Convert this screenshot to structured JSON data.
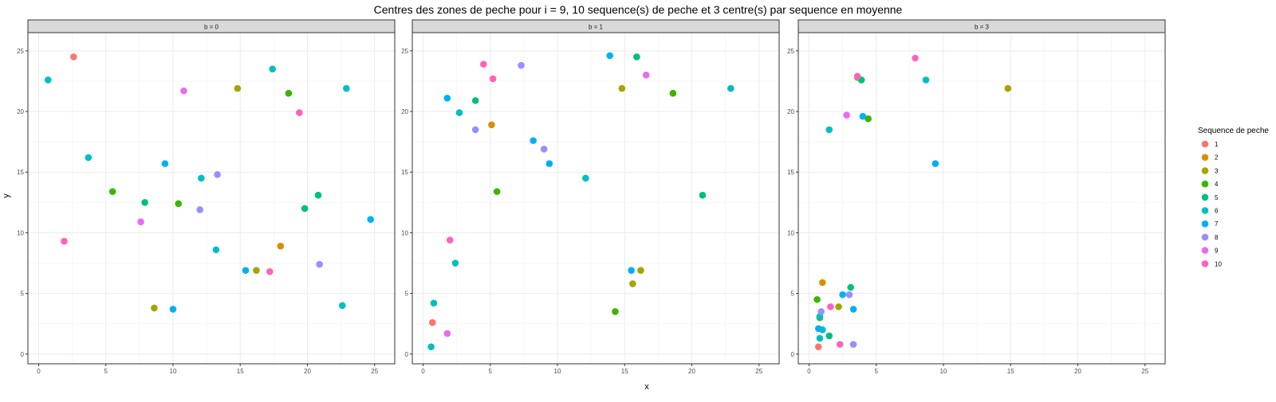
{
  "chart_data": {
    "type": "scatter",
    "title": "Centres des zones de peche pour i = 9, 10 sequence(s) de peche et 3 centre(s) par sequence en moyenne",
    "xlabel": "x",
    "ylabel": "y",
    "xlim": [
      -0.8,
      26.5
    ],
    "ylim": [
      -0.8,
      26.5
    ],
    "x_ticks": [
      0,
      5,
      10,
      15,
      20,
      25
    ],
    "y_ticks": [
      0,
      5,
      10,
      15,
      20,
      25
    ],
    "grid": true,
    "legend": {
      "title": "Sequence de peche",
      "position": "right",
      "labels": [
        "1",
        "2",
        "3",
        "4",
        "5",
        "6",
        "7",
        "8",
        "9",
        "10"
      ],
      "colors": [
        "#F8766D",
        "#D89000",
        "#A3A500",
        "#39B600",
        "#00BF7D",
        "#00BFC4",
        "#00B0F6",
        "#9590FF",
        "#E76BF3",
        "#FF62BC"
      ]
    },
    "panels": [
      {
        "label": "b = 0",
        "points": [
          {
            "x": 2.6,
            "y": 24.5,
            "seq": 1
          },
          {
            "x": 18.0,
            "y": 8.9,
            "seq": 2
          },
          {
            "x": 14.8,
            "y": 21.9,
            "seq": 3
          },
          {
            "x": 16.2,
            "y": 6.9,
            "seq": 3
          },
          {
            "x": 8.6,
            "y": 3.8,
            "seq": 3
          },
          {
            "x": 18.6,
            "y": 21.5,
            "seq": 4
          },
          {
            "x": 5.5,
            "y": 13.4,
            "seq": 4
          },
          {
            "x": 10.4,
            "y": 12.4,
            "seq": 4
          },
          {
            "x": 7.9,
            "y": 12.5,
            "seq": 5
          },
          {
            "x": 20.8,
            "y": 13.1,
            "seq": 5
          },
          {
            "x": 19.8,
            "y": 12.0,
            "seq": 5
          },
          {
            "x": 0.7,
            "y": 22.6,
            "seq": 6
          },
          {
            "x": 17.4,
            "y": 23.5,
            "seq": 6
          },
          {
            "x": 22.9,
            "y": 21.9,
            "seq": 6
          },
          {
            "x": 3.7,
            "y": 16.2,
            "seq": 6
          },
          {
            "x": 12.1,
            "y": 14.5,
            "seq": 6
          },
          {
            "x": 13.2,
            "y": 8.6,
            "seq": 6
          },
          {
            "x": 22.6,
            "y": 4.0,
            "seq": 6
          },
          {
            "x": 9.4,
            "y": 15.7,
            "seq": 7
          },
          {
            "x": 24.7,
            "y": 11.1,
            "seq": 7
          },
          {
            "x": 15.4,
            "y": 6.9,
            "seq": 7
          },
          {
            "x": 10.0,
            "y": 3.7,
            "seq": 7
          },
          {
            "x": 13.3,
            "y": 14.8,
            "seq": 8
          },
          {
            "x": 12.0,
            "y": 11.9,
            "seq": 8
          },
          {
            "x": 20.9,
            "y": 7.4,
            "seq": 8
          },
          {
            "x": 10.8,
            "y": 21.7,
            "seq": 9
          },
          {
            "x": 7.6,
            "y": 10.9,
            "seq": 9
          },
          {
            "x": 19.4,
            "y": 19.9,
            "seq": 10
          },
          {
            "x": 1.9,
            "y": 9.3,
            "seq": 10
          },
          {
            "x": 17.2,
            "y": 6.8,
            "seq": 10
          }
        ]
      },
      {
        "label": "b = 1",
        "points": [
          {
            "x": 0.7,
            "y": 2.6,
            "seq": 1
          },
          {
            "x": 5.1,
            "y": 18.9,
            "seq": 2
          },
          {
            "x": 14.8,
            "y": 21.9,
            "seq": 3
          },
          {
            "x": 16.2,
            "y": 6.9,
            "seq": 3
          },
          {
            "x": 15.6,
            "y": 5.8,
            "seq": 3
          },
          {
            "x": 18.6,
            "y": 21.5,
            "seq": 4
          },
          {
            "x": 5.5,
            "y": 13.4,
            "seq": 4
          },
          {
            "x": 14.3,
            "y": 3.5,
            "seq": 4
          },
          {
            "x": 15.9,
            "y": 24.5,
            "seq": 5
          },
          {
            "x": 3.9,
            "y": 20.9,
            "seq": 5
          },
          {
            "x": 20.8,
            "y": 13.1,
            "seq": 5
          },
          {
            "x": 2.7,
            "y": 19.9,
            "seq": 6
          },
          {
            "x": 22.9,
            "y": 21.9,
            "seq": 6
          },
          {
            "x": 12.1,
            "y": 14.5,
            "seq": 6
          },
          {
            "x": 2.4,
            "y": 7.5,
            "seq": 6
          },
          {
            "x": 0.8,
            "y": 4.2,
            "seq": 6
          },
          {
            "x": 0.6,
            "y": 0.6,
            "seq": 6
          },
          {
            "x": 13.9,
            "y": 24.6,
            "seq": 7
          },
          {
            "x": 1.8,
            "y": 21.1,
            "seq": 7
          },
          {
            "x": 8.2,
            "y": 17.6,
            "seq": 7
          },
          {
            "x": 9.4,
            "y": 15.7,
            "seq": 7
          },
          {
            "x": 15.5,
            "y": 6.9,
            "seq": 7
          },
          {
            "x": 7.3,
            "y": 23.8,
            "seq": 8
          },
          {
            "x": 3.9,
            "y": 18.5,
            "seq": 8
          },
          {
            "x": 9.0,
            "y": 16.9,
            "seq": 8
          },
          {
            "x": 16.6,
            "y": 23.0,
            "seq": 9
          },
          {
            "x": 1.8,
            "y": 1.7,
            "seq": 9
          },
          {
            "x": 4.5,
            "y": 23.9,
            "seq": 10
          },
          {
            "x": 5.2,
            "y": 22.7,
            "seq": 10
          },
          {
            "x": 2.0,
            "y": 9.4,
            "seq": 10
          }
        ]
      },
      {
        "label": "b = 3",
        "points": [
          {
            "x": 0.7,
            "y": 0.6,
            "seq": 1
          },
          {
            "x": 1.0,
            "y": 5.9,
            "seq": 2
          },
          {
            "x": 3.6,
            "y": 22.8,
            "seq": 3
          },
          {
            "x": 14.8,
            "y": 21.9,
            "seq": 3
          },
          {
            "x": 2.2,
            "y": 3.9,
            "seq": 3
          },
          {
            "x": 4.4,
            "y": 19.4,
            "seq": 4
          },
          {
            "x": 0.6,
            "y": 4.5,
            "seq": 4
          },
          {
            "x": 0.8,
            "y": 3.0,
            "seq": 4
          },
          {
            "x": 3.9,
            "y": 22.6,
            "seq": 5
          },
          {
            "x": 3.1,
            "y": 5.5,
            "seq": 5
          },
          {
            "x": 1.5,
            "y": 1.5,
            "seq": 5
          },
          {
            "x": 1.5,
            "y": 18.5,
            "seq": 6
          },
          {
            "x": 8.7,
            "y": 22.6,
            "seq": 6
          },
          {
            "x": 0.8,
            "y": 3.1,
            "seq": 6
          },
          {
            "x": 1.0,
            "y": 2.0,
            "seq": 6
          },
          {
            "x": 0.8,
            "y": 1.3,
            "seq": 6
          },
          {
            "x": 4.0,
            "y": 19.6,
            "seq": 7
          },
          {
            "x": 9.4,
            "y": 15.7,
            "seq": 7
          },
          {
            "x": 2.5,
            "y": 4.9,
            "seq": 7
          },
          {
            "x": 3.3,
            "y": 3.7,
            "seq": 7
          },
          {
            "x": 0.7,
            "y": 2.1,
            "seq": 7
          },
          {
            "x": 3.0,
            "y": 4.9,
            "seq": 8
          },
          {
            "x": 0.9,
            "y": 3.5,
            "seq": 8
          },
          {
            "x": 3.3,
            "y": 0.8,
            "seq": 8
          },
          {
            "x": 2.8,
            "y": 19.7,
            "seq": 9
          },
          {
            "x": 7.9,
            "y": 24.4,
            "seq": 10
          },
          {
            "x": 3.6,
            "y": 22.9,
            "seq": 10
          },
          {
            "x": 1.6,
            "y": 3.9,
            "seq": 10
          },
          {
            "x": 2.3,
            "y": 0.8,
            "seq": 10
          }
        ]
      }
    ]
  }
}
